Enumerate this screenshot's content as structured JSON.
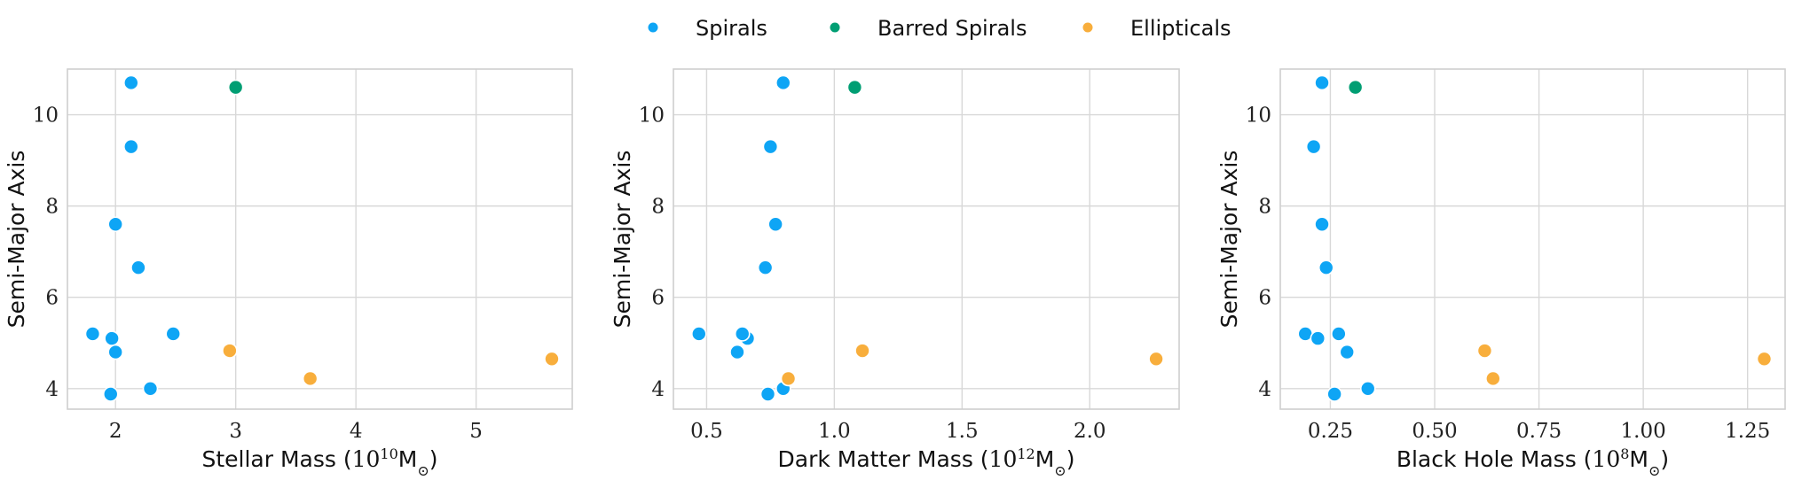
{
  "chart_data": {
    "type": "scatter",
    "legend": {
      "placement": "top-center",
      "entries": [
        {
          "key": "spirals",
          "label": "Spirals",
          "color": "#0ea5f5"
        },
        {
          "key": "barred",
          "label": "Barred Spirals",
          "color": "#009e73"
        },
        {
          "key": "ellipticals",
          "label": "Ellipticals",
          "color": "#f8ae3c"
        }
      ]
    },
    "semi_major_axis": {
      "spirals": [
        10.7,
        9.3,
        7.6,
        6.65,
        5.2,
        5.1,
        4.8,
        5.2,
        4.0,
        3.88
      ],
      "barred": [
        10.6
      ],
      "ellipticals": [
        4.83,
        4.22,
        4.65
      ]
    },
    "panels": [
      {
        "id": "stellar",
        "xlabel": "Stellar Mass ($10^{10}$M$_{\\odot}$)",
        "ylabel": "Semi-Major Axis",
        "xlim": [
          1.6,
          5.8
        ],
        "ylim": [
          3.55,
          11.0
        ],
        "xticks": [
          2,
          3,
          4,
          5
        ],
        "xtick_labels": [
          "2",
          "3",
          "4",
          "5"
        ],
        "yticks": [
          4,
          6,
          8,
          10
        ],
        "ytick_labels": [
          "4",
          "6",
          "8",
          "10"
        ],
        "x": {
          "spirals": [
            2.13,
            2.13,
            2.0,
            2.19,
            1.81,
            1.97,
            2.0,
            2.48,
            2.29,
            1.96
          ],
          "barred": [
            3.0
          ],
          "ellipticals": [
            2.95,
            3.62,
            5.63
          ]
        }
      },
      {
        "id": "dark",
        "xlabel": "Dark Matter Mass ($10^{12}$M$_{\\odot}$)",
        "ylabel": "Semi-Major Axis",
        "xlim": [
          0.37,
          2.35
        ],
        "ylim": [
          3.55,
          11.0
        ],
        "xticks": [
          0.5,
          1.0,
          1.5,
          2.0
        ],
        "xtick_labels": [
          "0.5",
          "1.0",
          "1.5",
          "2.0"
        ],
        "yticks": [
          4,
          6,
          8,
          10
        ],
        "ytick_labels": [
          "4",
          "6",
          "8",
          "10"
        ],
        "x": {
          "spirals": [
            0.8,
            0.75,
            0.77,
            0.73,
            0.47,
            0.66,
            0.62,
            0.64,
            0.8,
            0.74
          ],
          "barred": [
            1.08
          ],
          "ellipticals": [
            1.11,
            0.82,
            2.26
          ]
        }
      },
      {
        "id": "blackhole",
        "xlabel": "Black Hole Mass ($10^{8}$M$_{\\odot}$)",
        "ylabel": "Semi-Major Axis",
        "xlim": [
          0.13,
          1.34
        ],
        "ylim": [
          3.55,
          11.0
        ],
        "xticks": [
          0.25,
          0.5,
          0.75,
          1.0,
          1.25
        ],
        "xtick_labels": [
          "0.25",
          "0.50",
          "0.75",
          "1.00",
          "1.25"
        ],
        "yticks": [
          4,
          6,
          8,
          10
        ],
        "ytick_labels": [
          "4",
          "6",
          "8",
          "10"
        ],
        "x": {
          "spirals": [
            0.23,
            0.21,
            0.23,
            0.24,
            0.19,
            0.22,
            0.29,
            0.27,
            0.34,
            0.26
          ],
          "barred": [
            0.31
          ],
          "ellipticals": [
            0.62,
            0.64,
            1.29
          ]
        }
      }
    ],
    "grid": true
  }
}
